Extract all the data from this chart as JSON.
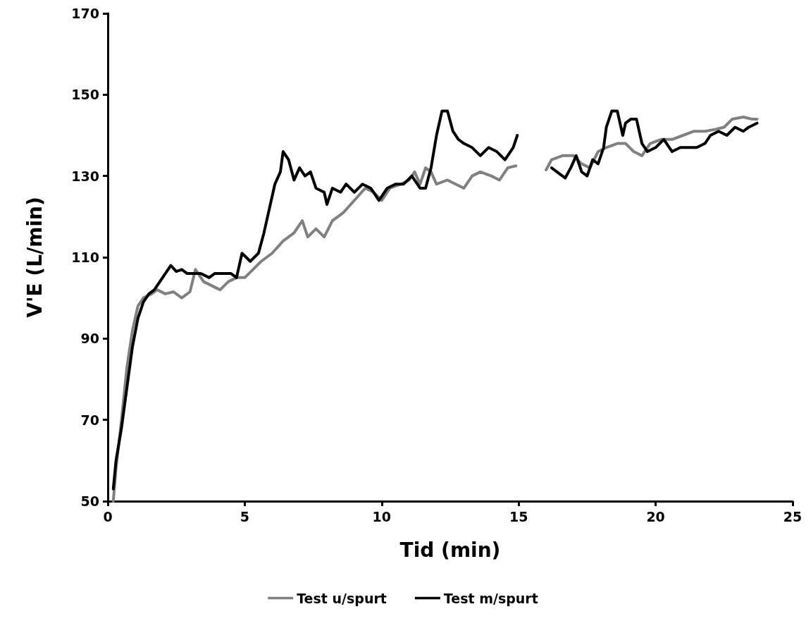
{
  "chart_data": {
    "type": "line",
    "xlabel": "Tid (min)",
    "ylabel": "V'E (L/min)",
    "xlim": [
      0,
      25
    ],
    "xticks": [
      0,
      5,
      10,
      15,
      20,
      25
    ],
    "ylim": [
      50,
      170
    ],
    "yticks": [
      50,
      70,
      90,
      110,
      130,
      150,
      170
    ],
    "grid": false,
    "legend": "bottom",
    "marker": "none",
    "line_style": "solid",
    "series": [
      {
        "name": "Test u/spurt",
        "color": "#808080",
        "x": [
          0.2,
          0.3,
          0.5,
          0.7,
          0.9,
          1.1,
          1.3,
          1.6,
          1.8,
          2.1,
          2.4,
          2.7,
          3.0,
          3.2,
          3.5,
          3.8,
          4.1,
          4.4,
          4.7,
          5.0,
          5.3,
          5.6,
          6.0,
          6.4,
          6.8,
          7.1,
          7.3,
          7.6,
          7.9,
          8.2,
          8.6,
          9.0,
          9.4,
          9.7,
          10.0,
          10.3,
          10.7,
          11.0,
          11.2,
          11.4,
          11.6,
          11.8,
          12.0,
          12.4,
          12.7,
          13.0,
          13.3,
          13.6,
          14.0,
          14.3,
          14.6,
          14.9,
          15.5,
          16.0,
          16.2,
          16.6,
          17.0,
          17.3,
          17.6,
          17.9,
          18.2,
          18.6,
          18.9,
          19.2,
          19.5,
          19.8,
          20.2,
          20.6,
          21.0,
          21.4,
          21.8,
          22.2,
          22.5,
          22.8,
          23.2,
          23.5,
          23.7
        ],
        "values": [
          50,
          58,
          70,
          83,
          92,
          98,
          100,
          101,
          102,
          101,
          101.5,
          100,
          101.5,
          107,
          104,
          103,
          102,
          104,
          105,
          105,
          107,
          109,
          111,
          114,
          116,
          119,
          115,
          117,
          115,
          119,
          121,
          124,
          127,
          126,
          124,
          127,
          128,
          129,
          131,
          128,
          132,
          131,
          128,
          129,
          128,
          127,
          130,
          131,
          130,
          129,
          132,
          132.5,
          null,
          131.5,
          134,
          135,
          135,
          133,
          132,
          136,
          137,
          138,
          138,
          136,
          135,
          138,
          139,
          139,
          140,
          141,
          141,
          141.5,
          142,
          144,
          144.5,
          144,
          144
        ]
      },
      {
        "name": "Test m/spurt",
        "color": "#000000",
        "x": [
          0.2,
          0.3,
          0.5,
          0.7,
          0.9,
          1.1,
          1.3,
          1.5,
          1.7,
          1.9,
          2.1,
          2.3,
          2.5,
          2.7,
          2.9,
          3.2,
          3.4,
          3.7,
          3.9,
          4.2,
          4.5,
          4.7,
          4.9,
          5.2,
          5.5,
          5.7,
          5.9,
          6.1,
          6.3,
          6.4,
          6.6,
          6.8,
          7.0,
          7.2,
          7.4,
          7.6,
          7.9,
          8.0,
          8.2,
          8.5,
          8.7,
          9.0,
          9.3,
          9.6,
          9.9,
          10.2,
          10.5,
          10.8,
          11.1,
          11.4,
          11.6,
          11.8,
          12.0,
          12.2,
          12.4,
          12.6,
          12.8,
          13.0,
          13.3,
          13.6,
          13.9,
          14.2,
          14.5,
          14.8,
          14.95,
          15.5,
          16.2,
          16.4,
          16.7,
          16.9,
          17.1,
          17.3,
          17.5,
          17.7,
          17.9,
          18.1,
          18.2,
          18.4,
          18.6,
          18.8,
          18.9,
          19.1,
          19.3,
          19.5,
          19.7,
          20.0,
          20.3,
          20.6,
          20.9,
          21.2,
          21.5,
          21.8,
          22.0,
          22.3,
          22.6,
          22.9,
          23.2,
          23.4,
          23.7
        ],
        "values": [
          53,
          60,
          68,
          78,
          88,
          95,
          99,
          101,
          102,
          104,
          106,
          108,
          106.5,
          107,
          106,
          106,
          106,
          105,
          106,
          106,
          106,
          105,
          111,
          109,
          111,
          116,
          122,
          128,
          131,
          136,
          134,
          129,
          132,
          130,
          131,
          127,
          126,
          123,
          127,
          126,
          128,
          126,
          128,
          127,
          124,
          127,
          128,
          128,
          130,
          127,
          127,
          132,
          140,
          146,
          146,
          141,
          139,
          138,
          137,
          135,
          137,
          136,
          134,
          137,
          140,
          null,
          132,
          131,
          129.5,
          132,
          135,
          131,
          130,
          134,
          133,
          137,
          142,
          146,
          146,
          140,
          143,
          144,
          144,
          138,
          136,
          137,
          139,
          136,
          137,
          137,
          137,
          138,
          140,
          141,
          140,
          142,
          141,
          142,
          143
        ]
      }
    ]
  }
}
